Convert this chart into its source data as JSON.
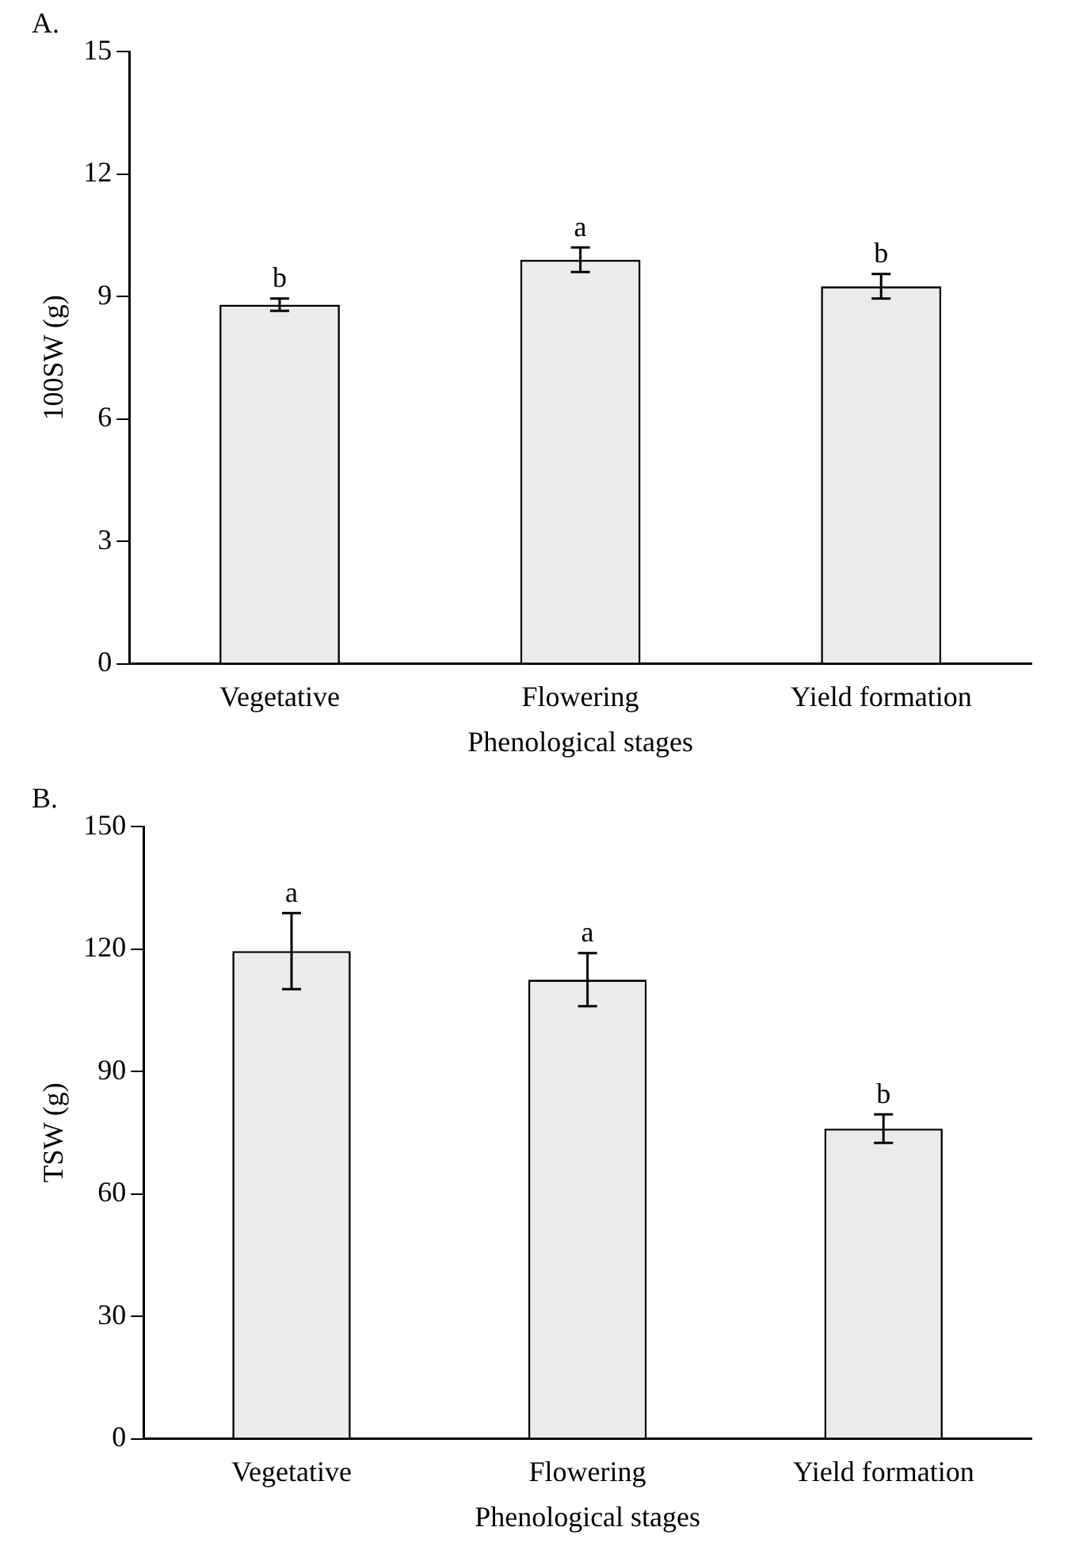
{
  "chart_data": [
    {
      "type": "bar",
      "title": "A.",
      "xlabel": "Phenological stages",
      "ylabel": "100SW (g)",
      "categories": [
        "Vegetative",
        "Flowering",
        "Yield formation"
      ],
      "values": [
        8.8,
        9.9,
        9.25
      ],
      "errors": [
        0.15,
        0.3,
        0.3
      ],
      "color": "#ebebeb",
      "ylim": [
        0,
        15
      ],
      "yticks": [
        0,
        3,
        6,
        9,
        12,
        15
      ],
      "grid": false,
      "legend": false,
      "annotations": [
        {
          "text": "b",
          "x": "Vegetative",
          "y": 8.95
        },
        {
          "text": "a",
          "x": "Flowering",
          "y": 10.2
        },
        {
          "text": "b",
          "x": "Yield formation",
          "y": 9.55
        }
      ]
    },
    {
      "type": "bar",
      "title": "B.",
      "xlabel": "Phenological stages",
      "ylabel": "TSW (g)",
      "categories": [
        "Vegetative",
        "Flowering",
        "Yield formation"
      ],
      "values": [
        119.5,
        112.5,
        76
      ],
      "errors": [
        9.3,
        6.5,
        3.5
      ],
      "color": "#ebebeb",
      "ylim": [
        0,
        150
      ],
      "yticks": [
        0,
        30,
        60,
        90,
        120,
        150
      ],
      "grid": false,
      "legend": false,
      "annotations": [
        {
          "text": "a",
          "x": "Vegetative",
          "y": 128.8
        },
        {
          "text": "a",
          "x": "Flowering",
          "y": 119
        },
        {
          "text": "b",
          "x": "Yield formation",
          "y": 79.5
        }
      ]
    }
  ]
}
